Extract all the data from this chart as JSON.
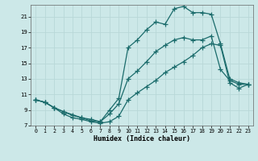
{
  "xlabel": "Humidex (Indice chaleur)",
  "bg_color": "#cce8e8",
  "grid_color": "#b8d8d8",
  "line_color": "#1a6b6b",
  "xlim": [
    -0.5,
    23.5
  ],
  "ylim": [
    7,
    22.5
  ],
  "yticks": [
    7,
    9,
    11,
    13,
    15,
    17,
    19,
    21
  ],
  "xticks": [
    0,
    1,
    2,
    3,
    4,
    5,
    6,
    7,
    8,
    9,
    10,
    11,
    12,
    13,
    14,
    15,
    16,
    17,
    18,
    19,
    20,
    21,
    22,
    23
  ],
  "curve_top_x": [
    0,
    1,
    2,
    3,
    5,
    6,
    7,
    8,
    9,
    10,
    11,
    12,
    13,
    14,
    15,
    16,
    17,
    18,
    19,
    20,
    21,
    22,
    23
  ],
  "curve_top_y": [
    10.3,
    10.0,
    9.3,
    8.8,
    8.0,
    7.8,
    7.5,
    9.0,
    10.5,
    17.0,
    18.0,
    19.3,
    20.3,
    20.0,
    22.0,
    22.3,
    21.5,
    21.5,
    21.3,
    17.5,
    13.0,
    12.5,
    12.3
  ],
  "curve_mid_x": [
    0,
    1,
    2,
    3,
    4,
    5,
    6,
    7,
    8,
    9,
    10,
    11,
    12,
    13,
    14,
    15,
    16,
    17,
    18,
    19,
    20,
    21,
    22,
    23
  ],
  "curve_mid_y": [
    10.3,
    10.0,
    9.3,
    8.8,
    8.3,
    8.0,
    7.6,
    7.5,
    8.5,
    9.8,
    13.0,
    14.0,
    15.2,
    16.5,
    17.3,
    18.0,
    18.3,
    18.0,
    18.0,
    18.5,
    14.2,
    12.8,
    12.3,
    12.3
  ],
  "curve_bot_x": [
    0,
    1,
    2,
    3,
    4,
    5,
    6,
    7,
    8,
    9,
    10,
    11,
    12,
    13,
    14,
    15,
    16,
    17,
    18,
    19,
    20,
    21,
    22,
    23
  ],
  "curve_bot_y": [
    10.3,
    10.0,
    9.3,
    8.5,
    8.0,
    7.8,
    7.5,
    7.3,
    7.5,
    8.2,
    10.3,
    11.2,
    12.0,
    12.8,
    13.8,
    14.5,
    15.2,
    16.0,
    17.0,
    17.5,
    17.3,
    12.5,
    11.8,
    12.3
  ]
}
